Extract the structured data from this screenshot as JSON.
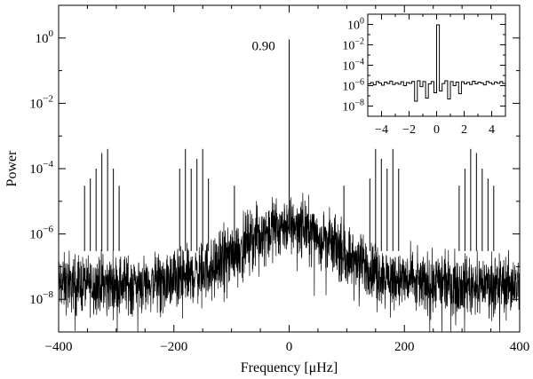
{
  "chart_data": [
    {
      "type": "line",
      "title": "",
      "xlabel": "Frequency [μHz]",
      "ylabel": "Power",
      "xlim": [
        -400,
        400
      ],
      "ylim_log10": [
        -9,
        1
      ],
      "yscale": "log",
      "grid": false,
      "x_ticks": [
        -400,
        -200,
        0,
        200,
        400
      ],
      "x_tick_labels": [
        "−400",
        "−200",
        "0",
        "200",
        "400"
      ],
      "y_tick_exponents": [
        0,
        -2,
        -4,
        -6,
        -8
      ],
      "y_tick_base": "10",
      "annotation": {
        "text": "0.90",
        "x": 0,
        "y": 0.9
      },
      "central_peak": {
        "x": 0,
        "y": 0.9
      },
      "side_peaks": [
        {
          "x": -355,
          "y": 3e-05
        },
        {
          "x": -345,
          "y": 5e-05
        },
        {
          "x": -335,
          "y": 0.0001
        },
        {
          "x": -325,
          "y": 0.0003
        },
        {
          "x": -315,
          "y": 0.0004
        },
        {
          "x": -305,
          "y": 0.0001
        },
        {
          "x": -295,
          "y": 3e-05
        },
        {
          "x": -190,
          "y": 0.0001
        },
        {
          "x": -180,
          "y": 0.0004
        },
        {
          "x": -170,
          "y": 0.0001
        },
        {
          "x": -160,
          "y": 0.0002
        },
        {
          "x": -150,
          "y": 0.0004
        },
        {
          "x": -140,
          "y": 5e-05
        },
        {
          "x": -95,
          "y": 3e-05
        },
        {
          "x": 95,
          "y": 3e-05
        },
        {
          "x": 140,
          "y": 5e-05
        },
        {
          "x": 150,
          "y": 0.0004
        },
        {
          "x": 160,
          "y": 0.0002
        },
        {
          "x": 170,
          "y": 0.0001
        },
        {
          "x": 180,
          "y": 0.0004
        },
        {
          "x": 190,
          "y": 0.0001
        },
        {
          "x": 295,
          "y": 3e-05
        },
        {
          "x": 305,
          "y": 0.0001
        },
        {
          "x": 315,
          "y": 0.0004
        },
        {
          "x": 325,
          "y": 0.0003
        },
        {
          "x": 335,
          "y": 0.0001
        },
        {
          "x": 345,
          "y": 5e-05
        },
        {
          "x": 355,
          "y": 3e-05
        }
      ],
      "noise_floor": {
        "central_level": 2e-06,
        "wing_level": 3e-08,
        "central_halfwidth": 120
      }
    },
    {
      "type": "line",
      "title": "",
      "xlabel": "",
      "ylabel": "",
      "xlim": [
        -5,
        5
      ],
      "ylim_log10": [
        -9,
        1
      ],
      "yscale": "log",
      "x_ticks": [
        -4,
        -2,
        0,
        2,
        4
      ],
      "x_tick_labels": [
        "−4",
        "−2",
        "0",
        "2",
        "4"
      ],
      "y_tick_exponents": [
        0,
        -2,
        -4,
        -6,
        -8
      ],
      "y_tick_base": "10",
      "step_values": {
        "bin_width": 0.2,
        "x_start": -5.0,
        "values": [
          1.5e-06,
          2e-06,
          1.2e-06,
          2.5e-06,
          1.8e-06,
          1.1e-06,
          2.2e-06,
          1.6e-06,
          2.8e-06,
          1.3e-06,
          1.9e-06,
          1.4e-06,
          2.4e-06,
          1e-06,
          2e-06,
          1.7e-06,
          2.6e-06,
          3e-08,
          3e-06,
          8e-07,
          2.5e-06,
          6e-08,
          1.5e-06,
          2.5e-06,
          2e-07,
          0.9,
          3e-07,
          1.6e-06,
          3e-06,
          5e-08,
          2.5e-06,
          1e-06,
          2.2e-06,
          1.6e-07,
          2.4e-06,
          1.5e-06,
          2.1e-06,
          1.3e-06,
          2.7e-06,
          1.5e-06,
          2.2e-06,
          1.8e-06,
          1.2e-06,
          2.6e-06,
          1.9e-06,
          1.4e-06,
          2.3e-06,
          1.7e-06,
          2.5e-06,
          1.6e-06
        ]
      }
    }
  ]
}
